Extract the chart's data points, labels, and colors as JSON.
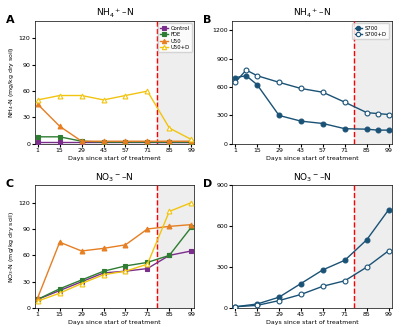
{
  "panel_A": {
    "title": "NH$_4$$^+$–N",
    "ylabel": "NH$_4$-N (mg/kg dry soil)",
    "xlabel": "Days since start of treatment",
    "xlim": [
      1,
      99
    ],
    "ylim": [
      0,
      140
    ],
    "yticks": [
      0,
      30,
      60,
      90,
      120
    ],
    "xticks": [
      1,
      15,
      29,
      43,
      57,
      71,
      85,
      99
    ],
    "dashed_x": 77,
    "series": {
      "Control": {
        "x": [
          1,
          15,
          29,
          43,
          57,
          71,
          85,
          99
        ],
        "y": [
          2,
          2,
          2,
          2,
          2,
          2,
          2,
          2
        ],
        "color": "#7b2d8b",
        "marker": "s",
        "filled": true
      },
      "FDE": {
        "x": [
          1,
          15,
          29,
          43,
          57,
          71,
          85,
          99
        ],
        "y": [
          8,
          8,
          3,
          2,
          2,
          2,
          2,
          2
        ],
        "color": "#2e7d32",
        "marker": "s",
        "filled": true
      },
      "U50": {
        "x": [
          1,
          15,
          29,
          43,
          57,
          71,
          85,
          99
        ],
        "y": [
          45,
          20,
          3,
          3,
          3,
          3,
          3,
          3
        ],
        "color": "#e67e22",
        "marker": "^",
        "filled": true
      },
      "U50+D": {
        "x": [
          1,
          15,
          29,
          43,
          57,
          71,
          85,
          99
        ],
        "y": [
          50,
          55,
          55,
          50,
          55,
          60,
          18,
          5
        ],
        "color": "#f1c40f",
        "marker": "^",
        "filled": false
      }
    }
  },
  "panel_B": {
    "title": "NH$_4$$^+$–N",
    "ylabel": "NH$_4$-N (mg/kg dry soil)",
    "xlabel": "Days since start of treatment",
    "xlim": [
      1,
      99
    ],
    "ylim": [
      0,
      1300
    ],
    "yticks": [
      0,
      300,
      600,
      900,
      1200
    ],
    "xticks": [
      1,
      15,
      29,
      43,
      57,
      71,
      85,
      99
    ],
    "dashed_x": 77,
    "series": {
      "S700": {
        "x": [
          1,
          8,
          15,
          29,
          43,
          57,
          71,
          85,
          92,
          99
        ],
        "y": [
          700,
          720,
          625,
          300,
          240,
          215,
          160,
          155,
          145,
          145
        ],
        "color": "#1a5276",
        "marker": "o",
        "filled": true
      },
      "S700+D": {
        "x": [
          1,
          8,
          15,
          29,
          43,
          57,
          71,
          85,
          92,
          99
        ],
        "y": [
          650,
          780,
          720,
          650,
          585,
          545,
          440,
          330,
          320,
          310
        ],
        "color": "#1a5276",
        "marker": "o",
        "filled": false
      }
    }
  },
  "panel_C": {
    "title": "NO$_3$$^-$–N",
    "ylabel": "NO$_3$-N (mg/kg dry soil)",
    "xlabel": "Days since start of treatment",
    "xlim": [
      1,
      99
    ],
    "ylim": [
      0,
      140
    ],
    "yticks": [
      0,
      30,
      60,
      90,
      120
    ],
    "xticks": [
      1,
      15,
      29,
      43,
      57,
      71,
      85,
      99
    ],
    "dashed_x": 77,
    "series": {
      "Control": {
        "x": [
          1,
          15,
          29,
          43,
          57,
          71,
          85,
          99
        ],
        "y": [
          10,
          20,
          30,
          40,
          42,
          45,
          60,
          65
        ],
        "color": "#7b2d8b",
        "marker": "s",
        "filled": true
      },
      "FDE": {
        "x": [
          1,
          15,
          29,
          43,
          57,
          71,
          85,
          99
        ],
        "y": [
          10,
          22,
          32,
          42,
          48,
          52,
          60,
          92
        ],
        "color": "#2e7d32",
        "marker": "s",
        "filled": true
      },
      "U50": {
        "x": [
          1,
          15,
          29,
          43,
          57,
          71,
          85,
          99
        ],
        "y": [
          12,
          75,
          65,
          68,
          72,
          90,
          93,
          95
        ],
        "color": "#e67e22",
        "marker": "^",
        "filled": true
      },
      "U50+D": {
        "x": [
          1,
          15,
          29,
          43,
          57,
          71,
          85,
          99
        ],
        "y": [
          8,
          17,
          28,
          38,
          42,
          50,
          110,
          120
        ],
        "color": "#f1c40f",
        "marker": "^",
        "filled": false
      }
    }
  },
  "panel_D": {
    "title": "NO$_3$$^-$–N",
    "ylabel": "NO$_3$-N (mg/kg dry soil)",
    "xlabel": "Days since start of treatment",
    "xlim": [
      1,
      99
    ],
    "ylim": [
      0,
      900
    ],
    "yticks": [
      0,
      300,
      600,
      900
    ],
    "xticks": [
      1,
      15,
      29,
      43,
      57,
      71,
      85,
      99
    ],
    "dashed_x": 77,
    "series": {
      "S700": {
        "x": [
          1,
          15,
          29,
          43,
          57,
          71,
          85,
          99
        ],
        "y": [
          10,
          30,
          80,
          180,
          280,
          350,
          500,
          720
        ],
        "color": "#1a5276",
        "marker": "o",
        "filled": true
      },
      "S700+D": {
        "x": [
          1,
          15,
          29,
          43,
          57,
          71,
          85,
          99
        ],
        "y": [
          10,
          20,
          55,
          100,
          160,
          200,
          300,
          420
        ],
        "color": "#1a5276",
        "marker": "o",
        "filled": false
      }
    }
  }
}
